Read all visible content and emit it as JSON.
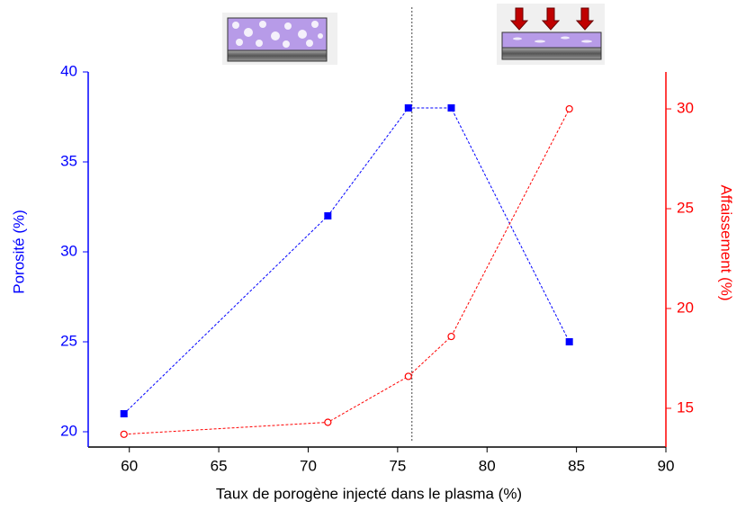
{
  "chart_data": {
    "type": "line",
    "x_label": "Taux de porogène injecté dans le plasma (%)",
    "y_label": "Porosité (%)",
    "y2_label": "Affaissement (%)",
    "x": [
      59.7,
      71.1,
      75.6,
      78.0,
      84.6
    ],
    "xlim": [
      57.7,
      90
    ],
    "xticks": [
      60,
      65,
      70,
      75,
      80,
      85,
      90
    ],
    "ylim": [
      19.15,
      40
    ],
    "yticks": [
      20,
      25,
      30,
      35,
      40
    ],
    "y2lim": [
      13.06,
      31.85
    ],
    "y2ticks": [
      15,
      20,
      25,
      30
    ],
    "vline": 75.8,
    "series": [
      {
        "name": "Porosité",
        "color": "#0000ff",
        "marker": "square",
        "values": [
          21,
          32,
          38,
          38,
          25
        ]
      },
      {
        "name": "Affaissement",
        "color": "#ff0000",
        "marker": "circle",
        "axis": "y2",
        "values": [
          13.7,
          14.3,
          16.6,
          18.6,
          30.0
        ]
      }
    ]
  }
}
